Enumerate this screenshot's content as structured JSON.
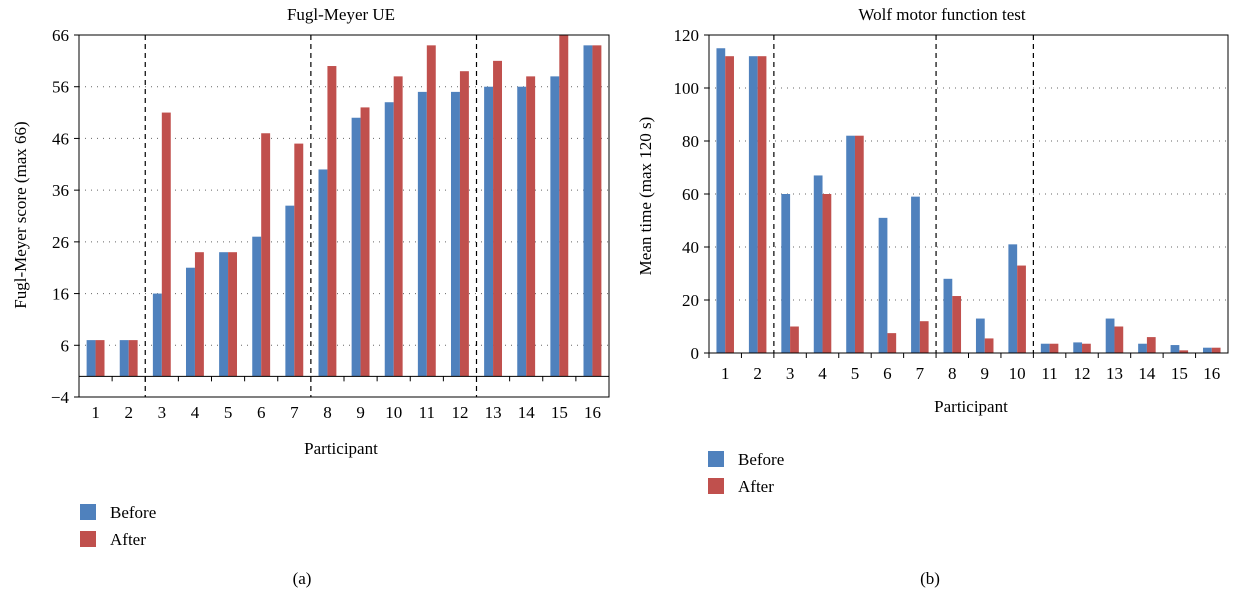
{
  "chart_data": [
    {
      "type": "bar",
      "panel_label": "(a)",
      "title": "Fugl-Meyer UE",
      "xlabel": "Participant",
      "ylabel": "Fugl-Meyer score (max 66)",
      "ylim": [
        -4,
        66
      ],
      "yticks": [
        -4,
        6,
        16,
        26,
        36,
        46,
        56,
        66
      ],
      "ytick_labels": [
        "−4",
        "6",
        "16",
        "26",
        "36",
        "46",
        "56",
        "66"
      ],
      "categories": [
        "1",
        "2",
        "3",
        "4",
        "5",
        "6",
        "7",
        "8",
        "9",
        "10",
        "11",
        "12",
        "13",
        "14",
        "15",
        "16"
      ],
      "series": [
        {
          "name": "Before",
          "color": "#4f81bd",
          "values": [
            7,
            7,
            16,
            21,
            24,
            27,
            33,
            40,
            50,
            53,
            55,
            55,
            56,
            56,
            58,
            64
          ]
        },
        {
          "name": "After",
          "color": "#c0504d",
          "values": [
            7,
            7,
            51,
            24,
            24,
            47,
            45,
            60,
            52,
            58,
            64,
            59,
            61,
            58,
            66,
            64
          ]
        }
      ],
      "dividers_after_category": [
        2,
        7,
        12
      ],
      "grid": "dotted horizontal",
      "legend_position": "bottom-left"
    },
    {
      "type": "bar",
      "panel_label": "(b)",
      "title": "Wolf motor function test",
      "xlabel": "Participant",
      "ylabel": "Mean time (max 120 s)",
      "ylim": [
        0,
        120
      ],
      "yticks": [
        0,
        20,
        40,
        60,
        80,
        100,
        120
      ],
      "ytick_labels": [
        "0",
        "20",
        "40",
        "60",
        "80",
        "100",
        "120"
      ],
      "categories": [
        "1",
        "2",
        "3",
        "4",
        "5",
        "6",
        "7",
        "8",
        "9",
        "10",
        "11",
        "12",
        "13",
        "14",
        "15",
        "16"
      ],
      "series": [
        {
          "name": "Before",
          "color": "#4f81bd",
          "values": [
            115,
            112,
            60,
            67,
            82,
            51,
            59,
            28,
            13,
            41,
            3.5,
            4,
            13,
            3.5,
            3,
            2
          ]
        },
        {
          "name": "After",
          "color": "#c0504d",
          "values": [
            112,
            112,
            10,
            60,
            82,
            7.5,
            12,
            21.5,
            5.5,
            33,
            3.5,
            3.5,
            10,
            6,
            1,
            2
          ]
        }
      ],
      "dividers_after_category": [
        2,
        7,
        10
      ],
      "grid": "dotted horizontal",
      "legend_position": "bottom-left"
    }
  ]
}
